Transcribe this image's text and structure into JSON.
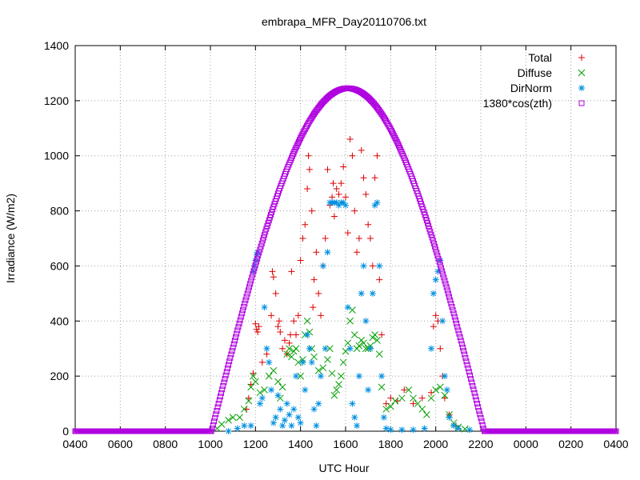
{
  "chart_data": {
    "type": "scatter",
    "title": "embrapa_MFR_Day20110706.txt",
    "xlabel": "UTC Hour",
    "ylabel": "Irradiance (W/m2)",
    "xlim": [
      4,
      28
    ],
    "ylim": [
      0,
      1400
    ],
    "xticks": [
      {
        "value": 4,
        "label": "0400"
      },
      {
        "value": 6,
        "label": "0600"
      },
      {
        "value": 8,
        "label": "0800"
      },
      {
        "value": 10,
        "label": "1000"
      },
      {
        "value": 12,
        "label": "1200"
      },
      {
        "value": 14,
        "label": "1400"
      },
      {
        "value": 16,
        "label": "1600"
      },
      {
        "value": 18,
        "label": "1800"
      },
      {
        "value": 20,
        "label": "2000"
      },
      {
        "value": 22,
        "label": "2200"
      },
      {
        "value": 24,
        "label": "0000"
      },
      {
        "value": 26,
        "label": "0200"
      },
      {
        "value": 28,
        "label": "0400"
      }
    ],
    "yticks": [
      {
        "value": 0,
        "label": "0"
      },
      {
        "value": 200,
        "label": "200"
      },
      {
        "value": 400,
        "label": "400"
      },
      {
        "value": 600,
        "label": "600"
      },
      {
        "value": 800,
        "label": "800"
      },
      {
        "value": 1000,
        "label": "1000"
      },
      {
        "value": 1200,
        "label": "1200"
      },
      {
        "value": 1400,
        "label": "1400"
      }
    ],
    "grid": true,
    "legend_position": "top-right",
    "series": [
      {
        "name": "Total",
        "marker": "plus",
        "color": "#dd0000",
        "points": [
          [
            11.6,
            80
          ],
          [
            11.7,
            120
          ],
          [
            11.8,
            170
          ],
          [
            11.9,
            210
          ],
          [
            12.0,
            390
          ],
          [
            12.05,
            370
          ],
          [
            12.1,
            360
          ],
          [
            12.15,
            380
          ],
          [
            12.3,
            250
          ],
          [
            12.5,
            280
          ],
          [
            12.7,
            420
          ],
          [
            12.75,
            580
          ],
          [
            12.8,
            560
          ],
          [
            12.9,
            500
          ],
          [
            13.0,
            380
          ],
          [
            13.05,
            400
          ],
          [
            13.1,
            360
          ],
          [
            13.2,
            300
          ],
          [
            13.3,
            330
          ],
          [
            13.4,
            280
          ],
          [
            13.5,
            320
          ],
          [
            13.55,
            350
          ],
          [
            13.6,
            580
          ],
          [
            13.7,
            400
          ],
          [
            13.8,
            350
          ],
          [
            13.9,
            420
          ],
          [
            14.0,
            620
          ],
          [
            14.1,
            700
          ],
          [
            14.2,
            750
          ],
          [
            14.3,
            880
          ],
          [
            14.35,
            1000
          ],
          [
            14.4,
            950
          ],
          [
            14.5,
            800
          ],
          [
            14.55,
            450
          ],
          [
            14.6,
            550
          ],
          [
            14.7,
            650
          ],
          [
            14.8,
            500
          ],
          [
            14.9,
            420
          ],
          [
            15.0,
            600
          ],
          [
            15.1,
            700
          ],
          [
            15.2,
            950
          ],
          [
            15.3,
            820
          ],
          [
            15.4,
            850
          ],
          [
            15.45,
            900
          ],
          [
            15.5,
            780
          ],
          [
            15.6,
            880
          ],
          [
            15.7,
            860
          ],
          [
            15.8,
            900
          ],
          [
            15.9,
            960
          ],
          [
            16.0,
            850
          ],
          [
            16.1,
            720
          ],
          [
            16.2,
            1060
          ],
          [
            16.3,
            1000
          ],
          [
            16.4,
            800
          ],
          [
            16.5,
            650
          ],
          [
            16.6,
            700
          ],
          [
            16.7,
            1020
          ],
          [
            16.8,
            920
          ],
          [
            16.9,
            860
          ],
          [
            17.0,
            750
          ],
          [
            17.1,
            700
          ],
          [
            17.2,
            600
          ],
          [
            17.3,
            920
          ],
          [
            17.4,
            1000
          ],
          [
            17.5,
            550
          ],
          [
            17.6,
            350
          ],
          [
            17.8,
            100
          ],
          [
            18.0,
            120
          ],
          [
            18.3,
            110
          ],
          [
            18.6,
            150
          ],
          [
            19.0,
            100
          ],
          [
            19.4,
            120
          ],
          [
            19.8,
            140
          ],
          [
            19.9,
            380
          ],
          [
            20.0,
            420
          ],
          [
            20.1,
            400
          ],
          [
            20.2,
            300
          ],
          [
            20.3,
            200
          ],
          [
            20.4,
            120
          ],
          [
            20.6,
            60
          ],
          [
            20.9,
            20
          ]
        ]
      },
      {
        "name": "Diffuse",
        "marker": "cross",
        "color": "#00a000",
        "points": [
          [
            10.3,
            10
          ],
          [
            10.5,
            25
          ],
          [
            10.8,
            40
          ],
          [
            11.0,
            50
          ],
          [
            11.3,
            50
          ],
          [
            11.5,
            80
          ],
          [
            11.7,
            110
          ],
          [
            11.8,
            160
          ],
          [
            11.9,
            200
          ],
          [
            12.0,
            180
          ],
          [
            12.2,
            140
          ],
          [
            12.4,
            150
          ],
          [
            12.6,
            200
          ],
          [
            12.8,
            220
          ],
          [
            13.0,
            180
          ],
          [
            13.1,
            120
          ],
          [
            13.2,
            160
          ],
          [
            13.4,
            280
          ],
          [
            13.5,
            300
          ],
          [
            13.6,
            270
          ],
          [
            13.7,
            290
          ],
          [
            13.8,
            300
          ],
          [
            13.9,
            250
          ],
          [
            14.0,
            200
          ],
          [
            14.1,
            260
          ],
          [
            14.2,
            350
          ],
          [
            14.3,
            400
          ],
          [
            14.4,
            360
          ],
          [
            14.5,
            300
          ],
          [
            14.6,
            270
          ],
          [
            14.8,
            220
          ],
          [
            15.0,
            230
          ],
          [
            15.2,
            260
          ],
          [
            15.3,
            300
          ],
          [
            15.4,
            210
          ],
          [
            15.5,
            130
          ],
          [
            15.6,
            150
          ],
          [
            15.7,
            170
          ],
          [
            15.8,
            200
          ],
          [
            15.9,
            250
          ],
          [
            16.0,
            290
          ],
          [
            16.1,
            320
          ],
          [
            16.2,
            400
          ],
          [
            16.3,
            440
          ],
          [
            16.4,
            350
          ],
          [
            16.5,
            300
          ],
          [
            16.6,
            310
          ],
          [
            16.7,
            330
          ],
          [
            16.8,
            320
          ],
          [
            16.9,
            300
          ],
          [
            17.0,
            300
          ],
          [
            17.1,
            310
          ],
          [
            17.2,
            340
          ],
          [
            17.3,
            350
          ],
          [
            17.4,
            330
          ],
          [
            17.5,
            280
          ],
          [
            17.6,
            160
          ],
          [
            17.8,
            80
          ],
          [
            18.0,
            90
          ],
          [
            18.2,
            110
          ],
          [
            18.5,
            120
          ],
          [
            18.8,
            150
          ],
          [
            19.0,
            120
          ],
          [
            19.2,
            100
          ],
          [
            19.4,
            80
          ],
          [
            19.6,
            60
          ],
          [
            19.8,
            120
          ],
          [
            20.0,
            150
          ],
          [
            20.2,
            160
          ],
          [
            20.4,
            130
          ],
          [
            20.6,
            60
          ],
          [
            20.8,
            30
          ],
          [
            21.0,
            15
          ],
          [
            21.3,
            8
          ]
        ]
      },
      {
        "name": "DirNorm",
        "marker": "star",
        "color": "#0090e0",
        "points": [
          [
            10.8,
            0
          ],
          [
            11.2,
            10
          ],
          [
            11.5,
            20
          ],
          [
            11.8,
            20
          ],
          [
            11.9,
            580
          ],
          [
            11.95,
            600
          ],
          [
            12.0,
            620
          ],
          [
            12.05,
            640
          ],
          [
            12.1,
            650
          ],
          [
            12.2,
            100
          ],
          [
            12.3,
            120
          ],
          [
            12.4,
            450
          ],
          [
            12.5,
            300
          ],
          [
            12.6,
            250
          ],
          [
            12.7,
            150
          ],
          [
            12.8,
            30
          ],
          [
            12.9,
            50
          ],
          [
            13.0,
            130
          ],
          [
            13.1,
            80
          ],
          [
            13.2,
            20
          ],
          [
            13.3,
            40
          ],
          [
            13.4,
            100
          ],
          [
            13.5,
            60
          ],
          [
            13.6,
            20
          ],
          [
            13.7,
            80
          ],
          [
            13.8,
            200
          ],
          [
            13.9,
            50
          ],
          [
            14.0,
            30
          ],
          [
            14.1,
            250
          ],
          [
            14.2,
            150
          ],
          [
            14.3,
            350
          ],
          [
            14.4,
            300
          ],
          [
            14.5,
            250
          ],
          [
            14.6,
            80
          ],
          [
            14.7,
            20
          ],
          [
            14.8,
            100
          ],
          [
            14.9,
            200
          ],
          [
            15.0,
            600
          ],
          [
            15.1,
            300
          ],
          [
            15.2,
            650
          ],
          [
            15.3,
            830
          ],
          [
            15.4,
            830
          ],
          [
            15.5,
            830
          ],
          [
            15.6,
            830
          ],
          [
            15.7,
            820
          ],
          [
            15.8,
            830
          ],
          [
            15.9,
            830
          ],
          [
            16.0,
            820
          ],
          [
            16.1,
            450
          ],
          [
            16.2,
            300
          ],
          [
            16.3,
            100
          ],
          [
            16.4,
            50
          ],
          [
            16.5,
            20
          ],
          [
            16.6,
            200
          ],
          [
            16.7,
            500
          ],
          [
            16.8,
            600
          ],
          [
            16.9,
            400
          ],
          [
            17.0,
            150
          ],
          [
            17.1,
            300
          ],
          [
            17.2,
            500
          ],
          [
            17.3,
            820
          ],
          [
            17.4,
            830
          ],
          [
            17.5,
            600
          ],
          [
            17.6,
            200
          ],
          [
            17.7,
            50
          ],
          [
            17.8,
            10
          ],
          [
            18.0,
            5
          ],
          [
            18.5,
            5
          ],
          [
            19.0,
            5
          ],
          [
            19.5,
            10
          ],
          [
            19.8,
            300
          ],
          [
            19.9,
            500
          ],
          [
            20.0,
            550
          ],
          [
            20.1,
            580
          ],
          [
            20.2,
            620
          ],
          [
            20.3,
            400
          ],
          [
            20.4,
            200
          ],
          [
            20.5,
            150
          ],
          [
            20.6,
            50
          ],
          [
            20.8,
            20
          ],
          [
            21.0,
            10
          ],
          [
            21.5,
            5
          ]
        ]
      },
      {
        "name": "1380*cos(zth)",
        "marker": "square",
        "color": "#b000e0",
        "curve": {
          "sunrise": 10.05,
          "sunset": 22.15,
          "peak_x": 16.1,
          "peak_y": 1245
        }
      }
    ]
  }
}
